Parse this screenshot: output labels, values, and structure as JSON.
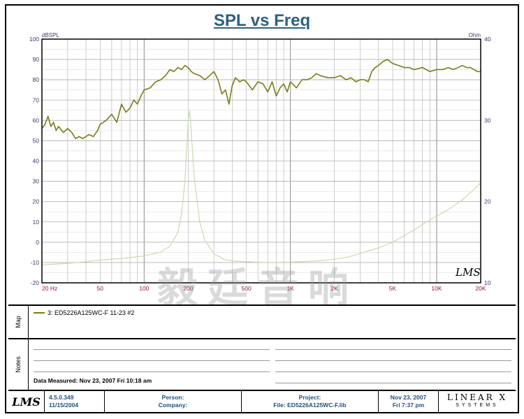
{
  "title": "SPL vs Freq",
  "chart_data": {
    "type": "line",
    "title": "SPL vs Freq",
    "xscale": "log",
    "xlim": [
      20,
      20000
    ],
    "ylim_left": [
      -20,
      100
    ],
    "ylim_right": [
      10,
      40
    ],
    "left_unit": "dBSPL",
    "right_unit": "Ohm",
    "x_ticks": [
      {
        "v": 20,
        "label": "20  Hz"
      },
      {
        "v": 50,
        "label": "50"
      },
      {
        "v": 100,
        "label": "100"
      },
      {
        "v": 200,
        "label": "200"
      },
      {
        "v": 500,
        "label": "500"
      },
      {
        "v": 1000,
        "label": "1K"
      },
      {
        "v": 2000,
        "label": "2K"
      },
      {
        "v": 5000,
        "label": "5K"
      },
      {
        "v": 10000,
        "label": "10K"
      },
      {
        "v": 20000,
        "label": "20K"
      }
    ],
    "y_ticks_left": [
      100,
      90,
      80,
      70,
      60,
      50,
      40,
      30,
      20,
      10,
      0,
      -10,
      -20
    ],
    "y_ticks_right": [
      40,
      30,
      20,
      10
    ],
    "grid": true,
    "series": [
      {
        "name": "3: ED5226A125WC-F   11-23  #2",
        "axis": "left",
        "color": "#7b7b19",
        "x": [
          20,
          21,
          22,
          23,
          24,
          25,
          26,
          28,
          30,
          32,
          34,
          36,
          38,
          40,
          42,
          45,
          48,
          50,
          55,
          60,
          65,
          70,
          75,
          80,
          85,
          90,
          95,
          100,
          110,
          120,
          130,
          140,
          150,
          160,
          170,
          180,
          190,
          200,
          210,
          220,
          240,
          260,
          280,
          300,
          320,
          340,
          360,
          380,
          400,
          420,
          450,
          480,
          500,
          550,
          600,
          650,
          700,
          750,
          800,
          850,
          900,
          950,
          1000,
          1100,
          1200,
          1300,
          1400,
          1500,
          1600,
          1800,
          2000,
          2200,
          2400,
          2600,
          2800,
          3000,
          3200,
          3400,
          3600,
          3800,
          4000,
          4300,
          4600,
          5000,
          5500,
          6000,
          6500,
          7000,
          8000,
          9000,
          10000,
          11000,
          12000,
          13000,
          14000,
          15000,
          16000,
          17000,
          18000,
          19000,
          20000
        ],
        "y": [
          56,
          58,
          62,
          57,
          59,
          55,
          57,
          54,
          56,
          54,
          51,
          52,
          51,
          52,
          53,
          52,
          55,
          58,
          60,
          63,
          59,
          68,
          64,
          66,
          70,
          68,
          72,
          75,
          76,
          79,
          80,
          82,
          85,
          84,
          86,
          85,
          87,
          86,
          84,
          83,
          82,
          80,
          82,
          84,
          80,
          73,
          75,
          68,
          77,
          81,
          79,
          80,
          79,
          75,
          79,
          78,
          74,
          79,
          72,
          76,
          78,
          74,
          79,
          76,
          80,
          80,
          81,
          83,
          82,
          81,
          81,
          82,
          80,
          81,
          79,
          80,
          80,
          79,
          84,
          86,
          87,
          89,
          90,
          88,
          87,
          86,
          86,
          85,
          86,
          84,
          85,
          85,
          86,
          85,
          86,
          87,
          86,
          86,
          85,
          84,
          84
        ]
      },
      {
        "name": "impedance",
        "axis": "right",
        "color": "#c8dcb0",
        "x": [
          20,
          30,
          40,
          50,
          70,
          100,
          130,
          150,
          170,
          180,
          190,
          200,
          205,
          210,
          220,
          240,
          260,
          300,
          350,
          400,
          500,
          700,
          1000,
          1500,
          2000,
          2500,
          3000,
          4000,
          5000,
          6000,
          7000,
          8000,
          10000,
          12000,
          15000,
          18000,
          20000
        ],
        "y": [
          12.2,
          12.4,
          12.6,
          12.8,
          13.0,
          13.3,
          13.8,
          14.5,
          16.2,
          18.5,
          22.5,
          30.0,
          31.2,
          28.5,
          23.0,
          17.5,
          15.2,
          13.6,
          12.9,
          12.7,
          12.6,
          12.5,
          12.55,
          12.7,
          12.9,
          13.2,
          13.6,
          14.3,
          15.0,
          15.8,
          16.5,
          17.2,
          18.2,
          19.0,
          20.2,
          21.5,
          22.3
        ]
      }
    ]
  },
  "map": {
    "label": "Map",
    "legend_entry": "3: ED5226A125WC-F   11-23  #2"
  },
  "notes": {
    "label": "Notes",
    "date_measured": "Data Measured: Nov 23, 2007  Fri 10:18 am"
  },
  "footer": {
    "logo": "LMS",
    "version": "4.5.0.349",
    "version_date": "11/15/2004",
    "person": "Person:",
    "company": "Company:",
    "project": "Project:",
    "file": "File: ED5226A125WC-F.lib",
    "date": "Nov 23, 2007",
    "time": "Fri  7:37 pm",
    "brand_top": "LINEAR X",
    "brand_bottom": "SYSTEMS"
  },
  "watermark": "毅廷音响",
  "chart_logo": "LMS"
}
